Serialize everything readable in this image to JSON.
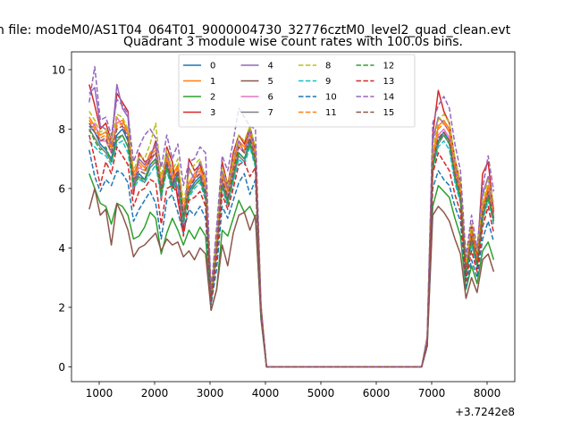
{
  "figure": {
    "suptitle": "n file: modeM0/AS1T04_064T01_9000004730_32776cztM0_level2_quad_clean.evt",
    "title": "Quadrant 3 module wise count rates with 100.0s bins.",
    "x_offset_label": "+3.7242e8"
  },
  "chart_data": {
    "type": "line",
    "title": "Quadrant 3 module wise count rates with 100.0s bins.",
    "xlabel": "",
    "ylabel": "",
    "x_offset": "+3.7242e8",
    "xlim": [
      500,
      8500
    ],
    "ylim": [
      -0.5,
      10.6
    ],
    "x_ticks": [
      1000,
      2000,
      3000,
      4000,
      5000,
      6000,
      7000,
      8000
    ],
    "y_ticks": [
      0,
      2,
      4,
      6,
      8,
      10
    ],
    "x_tick_labels": [
      "1000",
      "2000",
      "3000",
      "4000",
      "5000",
      "6000",
      "7000",
      "8000"
    ],
    "y_tick_labels": [
      "0",
      "2",
      "4",
      "6",
      "8",
      "10"
    ],
    "grid": false,
    "legend": {
      "placement": "upper-center",
      "columns": 4
    },
    "x": [
      820,
      920,
      1020,
      1120,
      1220,
      1320,
      1420,
      1520,
      1620,
      1720,
      1820,
      1920,
      2020,
      2120,
      2220,
      2320,
      2420,
      2520,
      2620,
      2720,
      2820,
      2920,
      3020,
      3120,
      3220,
      3320,
      3420,
      3520,
      3620,
      3720,
      3820,
      3920,
      4020,
      4120,
      6820,
      6920,
      7020,
      7120,
      7220,
      7320,
      7420,
      7520,
      7620,
      7720,
      7820,
      7920,
      8020,
      8120
    ],
    "series": [
      {
        "name": "0",
        "color": "#1f77b4",
        "dash": "solid",
        "values": [
          8.1,
          7.9,
          7.5,
          7.3,
          7.0,
          7.8,
          8.0,
          7.6,
          6.2,
          6.5,
          6.3,
          6.8,
          7.0,
          5.9,
          6.8,
          6.1,
          6.5,
          5.0,
          5.9,
          6.2,
          6.4,
          5.8,
          2.3,
          4.0,
          6.2,
          5.6,
          6.4,
          7.2,
          7.0,
          7.6,
          6.9,
          1.9,
          0.0,
          0.0,
          0.0,
          0.8,
          6.8,
          7.6,
          7.9,
          7.6,
          6.4,
          5.7,
          3.2,
          4.3,
          3.5,
          5.1,
          5.8,
          5.0
        ]
      },
      {
        "name": "1",
        "color": "#ff7f0e",
        "dash": "solid",
        "values": [
          8.4,
          8.1,
          7.8,
          7.9,
          7.4,
          8.2,
          8.3,
          7.9,
          6.5,
          6.9,
          6.7,
          7.2,
          7.4,
          6.2,
          7.1,
          6.4,
          6.8,
          5.3,
          6.2,
          6.5,
          6.7,
          6.1,
          2.4,
          4.2,
          6.5,
          5.9,
          6.8,
          7.6,
          7.4,
          7.9,
          7.2,
          2.0,
          0.0,
          0.0,
          0.0,
          0.9,
          7.1,
          8.1,
          8.3,
          8.0,
          6.8,
          6.0,
          3.4,
          4.6,
          3.7,
          5.4,
          6.1,
          5.3
        ]
      },
      {
        "name": "2",
        "color": "#2ca02c",
        "dash": "solid",
        "values": [
          6.5,
          6.0,
          5.5,
          5.4,
          4.8,
          5.5,
          5.4,
          5.1,
          4.3,
          4.4,
          4.7,
          5.2,
          5.0,
          3.8,
          4.5,
          5.0,
          4.6,
          4.1,
          4.6,
          4.3,
          4.7,
          4.4,
          1.9,
          2.6,
          4.6,
          4.4,
          5.0,
          5.6,
          5.2,
          5.4,
          5.0,
          1.7,
          0.0,
          0.0,
          0.0,
          0.7,
          5.4,
          6.1,
          5.9,
          5.7,
          5.0,
          4.4,
          2.6,
          3.4,
          2.8,
          3.9,
          4.2,
          3.6
        ]
      },
      {
        "name": "3",
        "color": "#d62728",
        "dash": "solid",
        "values": [
          9.5,
          8.8,
          8.0,
          8.2,
          7.6,
          9.2,
          8.9,
          8.6,
          5.8,
          7.2,
          6.9,
          7.0,
          7.6,
          5.6,
          7.4,
          6.9,
          5.6,
          4.6,
          7.0,
          6.6,
          6.8,
          6.3,
          2.4,
          4.3,
          6.9,
          6.1,
          7.2,
          7.8,
          7.5,
          8.1,
          7.3,
          2.0,
          0.0,
          0.0,
          0.0,
          1.0,
          7.8,
          9.3,
          8.6,
          8.2,
          7.0,
          6.2,
          3.3,
          4.8,
          3.7,
          6.5,
          6.9,
          5.2
        ]
      },
      {
        "name": "4",
        "color": "#9467bd",
        "dash": "solid",
        "values": [
          9.2,
          9.4,
          8.1,
          8.0,
          7.5,
          9.5,
          8.7,
          8.4,
          6.0,
          7.0,
          6.8,
          7.1,
          7.5,
          6.0,
          7.2,
          6.6,
          6.0,
          4.8,
          6.7,
          6.3,
          6.9,
          6.4,
          2.5,
          4.4,
          6.6,
          6.0,
          7.0,
          7.6,
          7.2,
          8.0,
          7.1,
          1.9,
          0.0,
          0.0,
          0.0,
          0.9,
          7.6,
          8.4,
          8.2,
          7.9,
          6.8,
          5.9,
          3.1,
          4.5,
          3.5,
          5.8,
          6.4,
          5.1
        ]
      },
      {
        "name": "5",
        "color": "#8c564b",
        "dash": "solid",
        "values": [
          5.3,
          6.0,
          5.1,
          5.3,
          4.1,
          5.5,
          5.1,
          4.6,
          3.7,
          4.0,
          4.1,
          4.3,
          4.5,
          3.9,
          4.3,
          4.1,
          4.2,
          3.7,
          3.9,
          3.6,
          4.0,
          3.8,
          1.9,
          2.6,
          4.1,
          3.4,
          4.5,
          5.1,
          5.2,
          4.6,
          5.1,
          1.6,
          0.0,
          0.0,
          0.0,
          0.7,
          5.1,
          5.4,
          5.2,
          4.9,
          4.3,
          3.8,
          2.3,
          3.0,
          2.5,
          3.6,
          3.8,
          3.2
        ]
      },
      {
        "name": "6",
        "color": "#e377c2",
        "dash": "solid",
        "values": [
          7.9,
          8.2,
          7.6,
          7.6,
          7.2,
          8.4,
          8.1,
          7.8,
          6.4,
          6.7,
          6.6,
          6.9,
          7.2,
          6.1,
          7.0,
          6.3,
          6.6,
          5.2,
          6.0,
          6.4,
          6.5,
          6.0,
          2.4,
          4.1,
          6.3,
          5.7,
          6.6,
          7.4,
          7.2,
          7.7,
          7.0,
          1.9,
          0.0,
          0.0,
          0.0,
          0.9,
          7.0,
          7.8,
          8.0,
          7.7,
          6.6,
          5.8,
          3.3,
          4.4,
          3.6,
          5.2,
          5.9,
          5.1
        ]
      },
      {
        "name": "7",
        "color": "#7f7f7f",
        "dash": "solid",
        "values": [
          8.0,
          7.7,
          7.4,
          7.2,
          6.9,
          7.6,
          7.8,
          7.4,
          6.1,
          6.4,
          6.2,
          6.7,
          6.9,
          5.8,
          6.7,
          6.0,
          6.4,
          4.9,
          5.8,
          6.1,
          6.3,
          5.7,
          2.2,
          3.9,
          6.1,
          5.5,
          6.3,
          7.1,
          6.9,
          7.5,
          6.8,
          1.8,
          0.0,
          0.0,
          0.0,
          0.8,
          6.7,
          7.5,
          7.8,
          7.5,
          6.3,
          5.6,
          3.1,
          4.2,
          3.4,
          5.0,
          5.7,
          4.9
        ]
      },
      {
        "name": "8",
        "color": "#bcbd22",
        "dash": "dashed",
        "values": [
          8.6,
          8.3,
          7.9,
          8.0,
          7.6,
          8.5,
          8.4,
          8.0,
          6.6,
          7.1,
          7.0,
          7.5,
          8.2,
          6.4,
          7.3,
          6.6,
          7.0,
          5.5,
          6.5,
          6.8,
          7.0,
          6.3,
          2.5,
          4.4,
          6.7,
          6.1,
          7.0,
          7.8,
          7.6,
          8.1,
          7.4,
          2.1,
          0.0,
          0.0,
          0.0,
          0.9,
          7.3,
          8.3,
          8.5,
          8.2,
          7.0,
          6.2,
          3.5,
          4.8,
          3.9,
          5.6,
          6.3,
          5.5
        ]
      },
      {
        "name": "9",
        "color": "#17becf",
        "dash": "dashed",
        "values": [
          7.6,
          7.4,
          7.2,
          7.1,
          6.8,
          7.5,
          7.6,
          7.2,
          6.0,
          6.3,
          6.2,
          6.5,
          6.8,
          5.7,
          6.6,
          5.9,
          6.3,
          4.8,
          5.7,
          6.0,
          6.2,
          5.6,
          2.2,
          3.8,
          6.0,
          5.4,
          6.2,
          7.0,
          6.8,
          7.4,
          6.7,
          1.8,
          0.0,
          0.0,
          0.0,
          0.8,
          6.6,
          7.4,
          7.6,
          7.3,
          6.2,
          5.5,
          3.0,
          4.1,
          3.3,
          4.9,
          5.6,
          4.8
        ]
      },
      {
        "name": "10",
        "color": "#1f77b4",
        "dash": "dashed",
        "values": [
          7.3,
          6.4,
          5.9,
          6.3,
          6.1,
          6.6,
          6.5,
          6.2,
          4.9,
          5.3,
          5.6,
          5.9,
          5.5,
          4.3,
          5.6,
          5.8,
          5.2,
          4.5,
          5.3,
          5.1,
          5.4,
          5.0,
          2.1,
          3.3,
          5.4,
          5.0,
          5.6,
          6.2,
          6.5,
          5.8,
          6.3,
          1.8,
          0.0,
          0.0,
          0.0,
          0.7,
          6.0,
          6.6,
          6.3,
          6.1,
          5.4,
          4.9,
          2.7,
          3.6,
          3.0,
          4.3,
          4.9,
          4.2
        ]
      },
      {
        "name": "11",
        "color": "#ff7f0e",
        "dash": "dashed",
        "values": [
          8.3,
          8.0,
          7.7,
          7.8,
          7.3,
          8.1,
          8.2,
          7.8,
          6.4,
          6.8,
          6.6,
          7.1,
          7.3,
          6.1,
          7.0,
          6.3,
          6.7,
          5.2,
          6.1,
          6.4,
          6.6,
          6.0,
          2.3,
          4.1,
          6.4,
          5.8,
          6.7,
          7.5,
          7.3,
          7.8,
          7.1,
          2.0,
          0.0,
          0.0,
          0.0,
          0.9,
          7.0,
          8.0,
          8.2,
          7.9,
          6.7,
          5.9,
          3.3,
          4.5,
          3.6,
          5.3,
          6.0,
          5.2
        ]
      },
      {
        "name": "12",
        "color": "#2ca02c",
        "dash": "dashed",
        "values": [
          8.0,
          7.6,
          7.3,
          7.4,
          6.9,
          7.7,
          7.8,
          7.4,
          6.1,
          6.4,
          6.3,
          6.8,
          7.0,
          5.8,
          6.7,
          6.0,
          6.4,
          4.9,
          5.8,
          6.1,
          6.3,
          5.7,
          2.2,
          3.9,
          6.1,
          5.5,
          6.4,
          7.2,
          7.0,
          7.5,
          6.8,
          1.8,
          0.0,
          0.0,
          0.0,
          0.8,
          6.7,
          7.6,
          7.8,
          7.5,
          6.4,
          5.6,
          3.1,
          4.3,
          3.4,
          5.0,
          5.7,
          4.9
        ]
      },
      {
        "name": "13",
        "color": "#d62728",
        "dash": "dashed",
        "values": [
          7.8,
          7.0,
          6.1,
          6.9,
          6.5,
          7.4,
          7.1,
          6.8,
          5.4,
          5.9,
          6.0,
          6.3,
          6.2,
          4.8,
          6.0,
          6.1,
          5.8,
          4.4,
          5.6,
          5.7,
          5.9,
          5.4,
          2.2,
          3.7,
          5.8,
          5.3,
          6.0,
          6.8,
          6.9,
          6.4,
          6.7,
          1.9,
          0.0,
          0.0,
          0.0,
          0.8,
          6.5,
          7.2,
          6.9,
          6.6,
          5.8,
          5.2,
          2.9,
          3.9,
          3.2,
          4.7,
          5.4,
          4.5
        ]
      },
      {
        "name": "14",
        "color": "#9467bd",
        "dash": "dashed",
        "values": [
          8.9,
          10.1,
          8.3,
          8.4,
          7.8,
          9.0,
          8.8,
          8.5,
          6.9,
          7.4,
          7.8,
          8.0,
          7.7,
          6.7,
          7.8,
          7.0,
          7.5,
          6.1,
          6.9,
          7.0,
          7.4,
          7.2,
          2.6,
          4.7,
          7.1,
          6.6,
          7.6,
          8.7,
          8.4,
          8.1,
          8.0,
          2.1,
          0.0,
          0.0,
          0.0,
          1.0,
          8.2,
          8.8,
          9.1,
          8.7,
          7.5,
          6.6,
          3.7,
          5.1,
          4.0,
          6.0,
          7.1,
          5.9
        ]
      },
      {
        "name": "15",
        "color": "#8c564b",
        "dash": "dashed",
        "values": [
          8.2,
          7.9,
          7.6,
          7.7,
          7.2,
          8.0,
          8.1,
          7.7,
          6.3,
          6.6,
          6.5,
          7.0,
          7.2,
          6.0,
          6.9,
          6.2,
          6.6,
          5.1,
          6.0,
          6.3,
          6.5,
          5.9,
          2.3,
          4.0,
          6.3,
          5.7,
          6.6,
          7.4,
          7.2,
          7.7,
          7.0,
          1.9,
          0.0,
          0.0,
          0.0,
          0.8,
          6.9,
          7.7,
          7.9,
          7.6,
          6.5,
          5.8,
          3.2,
          4.4,
          3.5,
          5.2,
          5.9,
          5.0
        ]
      }
    ]
  }
}
